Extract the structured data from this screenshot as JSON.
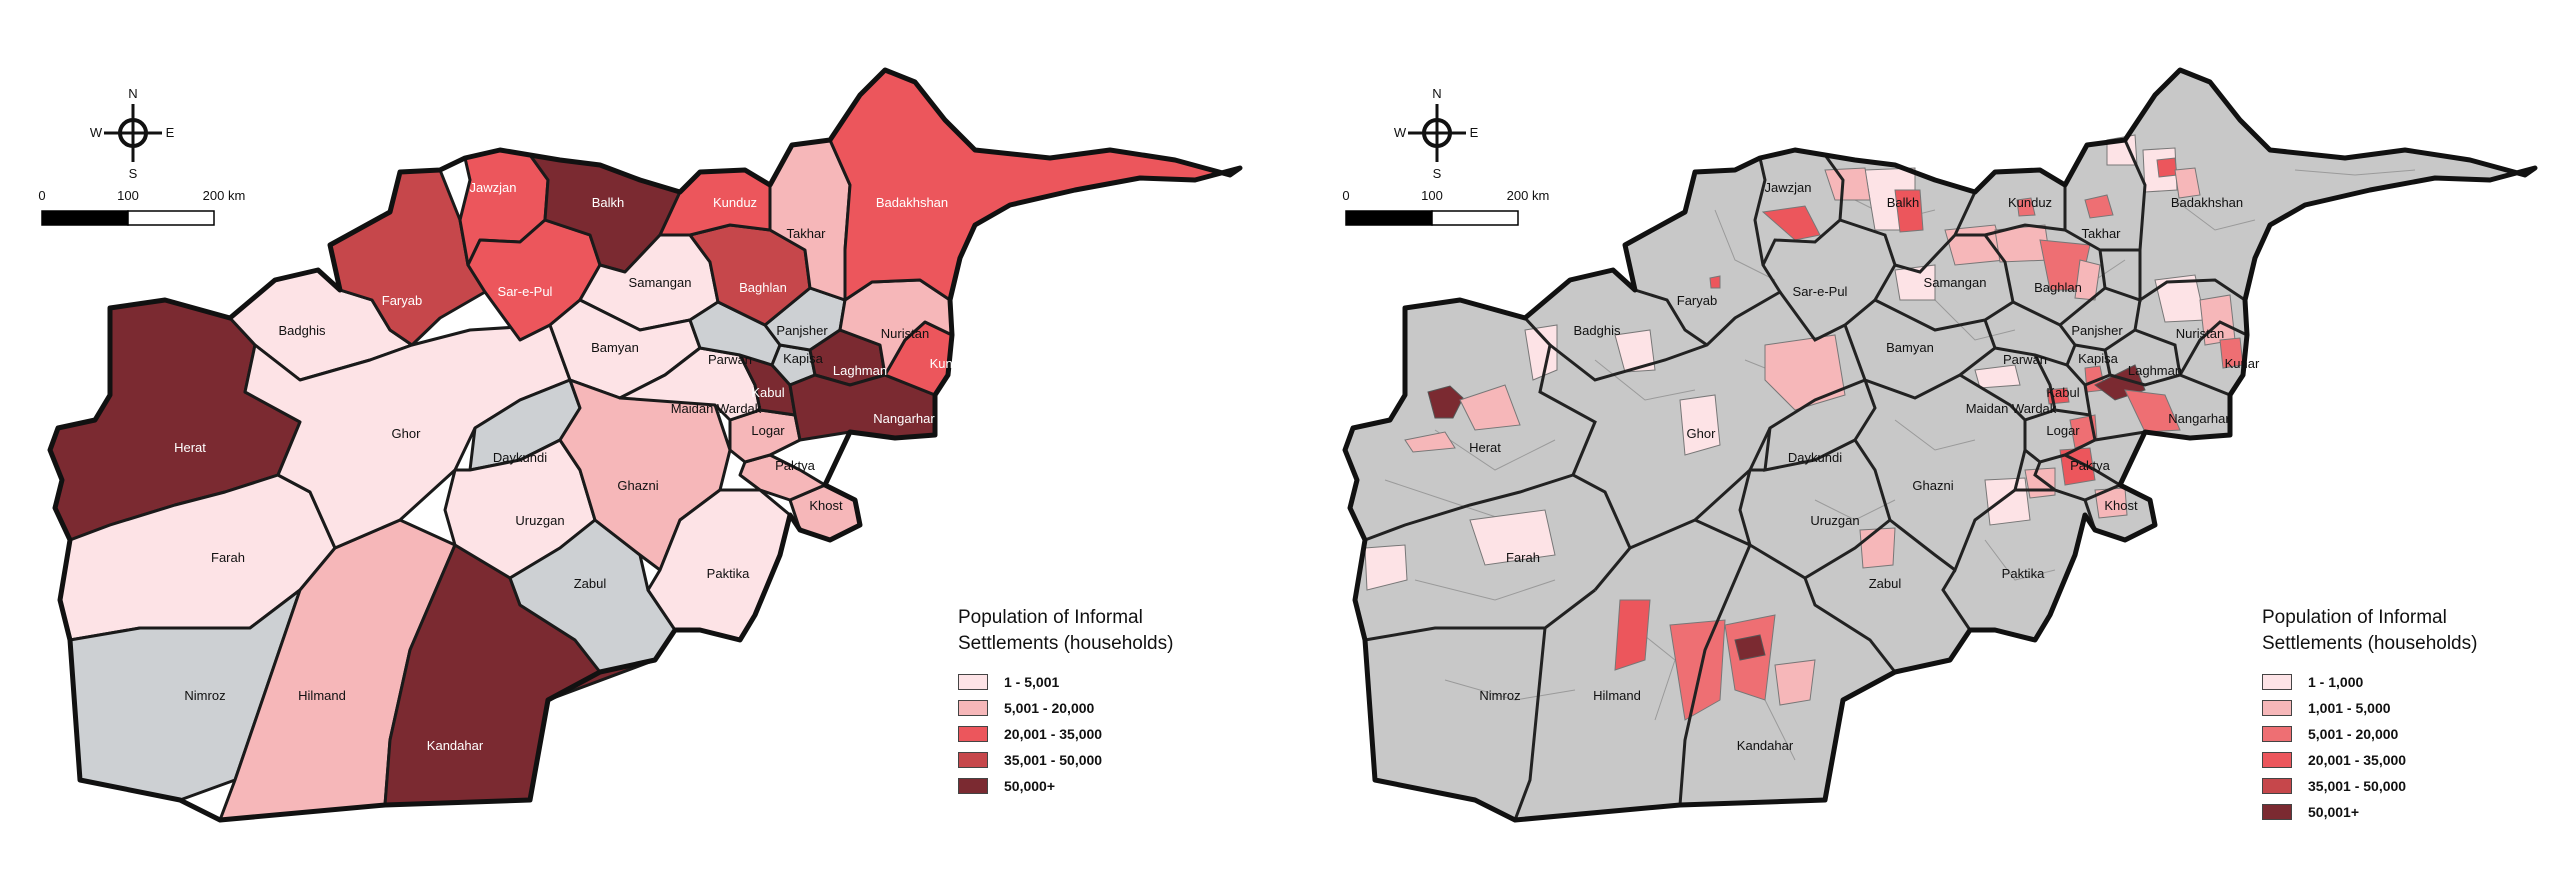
{
  "compass": {
    "north": "N",
    "south": "S",
    "east": "E",
    "west": "W"
  },
  "scale": {
    "zero": "0",
    "mid": "100",
    "end": "200 km"
  },
  "colors": {
    "c1": "#fde3e6",
    "c2": "#f6b7b9",
    "c3": "#ee6f73",
    "c4": "#ec565c",
    "c5": "#c6474b",
    "c6": "#7b2a31",
    "grey": "#cdd0d3",
    "grey2": "#c8c8c8",
    "outline": "#111111"
  },
  "left_map": {
    "legend": {
      "title": "Population of Informal Settlements (households)",
      "items": [
        {
          "label": "1 - 5,001",
          "color": "#fde3e6"
        },
        {
          "label": "5,001 - 20,000",
          "color": "#f6b7b9"
        },
        {
          "label": "20,001 - 35,000",
          "color": "#ec565c"
        },
        {
          "label": "35,001 - 50,000",
          "color": "#c6474b"
        },
        {
          "label": "50,000+",
          "color": "#7b2a31"
        }
      ]
    },
    "provinces": [
      {
        "name": "Herat",
        "class": "50,000+"
      },
      {
        "name": "Farah",
        "class": "1 - 5,001"
      },
      {
        "name": "Nimroz",
        "class": "no data"
      },
      {
        "name": "Hilmand",
        "class": "5,001 - 20,000"
      },
      {
        "name": "Kandahar",
        "class": "50,000+"
      },
      {
        "name": "Badghis",
        "class": "1 - 5,001"
      },
      {
        "name": "Ghor",
        "class": "1 - 5,001"
      },
      {
        "name": "Faryab",
        "class": "35,001 - 50,000"
      },
      {
        "name": "Jawzjan",
        "class": "20,001 - 35,000"
      },
      {
        "name": "Sar-e-Pul",
        "class": "20,001 - 35,000"
      },
      {
        "name": "Balkh",
        "class": "50,000+"
      },
      {
        "name": "Samangan",
        "class": "1 - 5,001"
      },
      {
        "name": "Bamyan",
        "class": "1 - 5,001"
      },
      {
        "name": "Daykundi",
        "class": "no data"
      },
      {
        "name": "Uruzgan",
        "class": "1 - 5,001"
      },
      {
        "name": "Zabul",
        "class": "no data"
      },
      {
        "name": "Ghazni",
        "class": "5,001 - 20,000"
      },
      {
        "name": "Paktika",
        "class": "1 - 5,001"
      },
      {
        "name": "Khost",
        "class": "5,001 - 20,000"
      },
      {
        "name": "Paktya",
        "class": "5,001 - 20,000"
      },
      {
        "name": "Logar",
        "class": "5,001 - 20,000"
      },
      {
        "name": "Maidan Wardak",
        "class": "1 - 5,001"
      },
      {
        "name": "Kabul",
        "class": "50,000+"
      },
      {
        "name": "Parwan",
        "class": "no data"
      },
      {
        "name": "Kapisa",
        "class": "no data"
      },
      {
        "name": "Panjsher",
        "class": "no data"
      },
      {
        "name": "Laghman",
        "class": "50,000+"
      },
      {
        "name": "Nangarhar",
        "class": "50,000+"
      },
      {
        "name": "Kunar",
        "class": "20,001 - 35,000"
      },
      {
        "name": "Nuristan",
        "class": "5,001 - 20,000"
      },
      {
        "name": "Baghlan",
        "class": "35,001 - 50,000"
      },
      {
        "name": "Kunduz",
        "class": "20,001 - 35,000"
      },
      {
        "name": "Takhar",
        "class": "5,001 - 20,000"
      },
      {
        "name": "Badakhshan",
        "class": "20,001 - 35,000"
      }
    ]
  },
  "right_map": {
    "legend": {
      "title": "Population of Informal Settlements (households)",
      "items": [
        {
          "label": "1 - 1,000",
          "color": "#fde3e6"
        },
        {
          "label": "1,001 - 5,000",
          "color": "#f6b7b9"
        },
        {
          "label": "5,001 - 20,000",
          "color": "#ee6f73"
        },
        {
          "label": "20,001 - 35,000",
          "color": "#ec565c"
        },
        {
          "label": "35,001 - 50,000",
          "color": "#c6474b"
        },
        {
          "label": "50,001+",
          "color": "#7b2a31"
        }
      ]
    },
    "province_labels": [
      "Jawzjan",
      "Balkh",
      "Kunduz",
      "Takhar",
      "Badakhshan",
      "Faryab",
      "Sar-e-Pul",
      "Samangan",
      "Baghlan",
      "Panjsher",
      "Nuristan",
      "Kapisa",
      "Kunar",
      "Badghis",
      "Bamyan",
      "Parwan",
      "Laghman",
      "Kabul",
      "Maidan Wardak",
      "Nangarhar",
      "Ghor",
      "Logar",
      "Herat",
      "Daykundi",
      "Paktya",
      "Ghazni",
      "Khost",
      "Uruzgan",
      "Farah",
      "Paktika",
      "Zabul",
      "Nimroz",
      "Hilmand",
      "Kandahar"
    ]
  }
}
